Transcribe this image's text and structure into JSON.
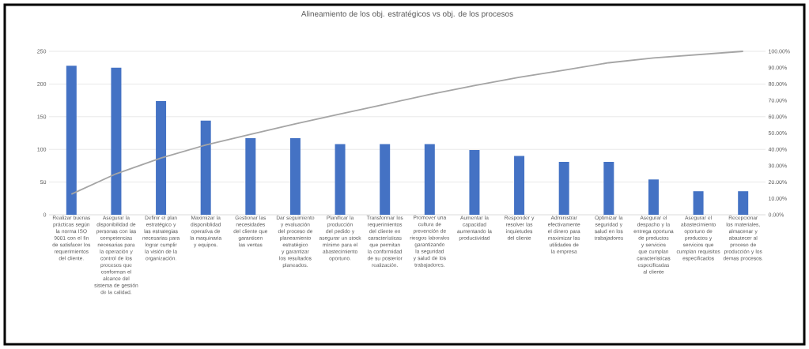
{
  "chart_data": {
    "type": "bar",
    "title": "Alineamiento de los obj. estratégicos vs obj. de los procesos",
    "categories": [
      "Realizar buenas prácticas según la norma ISO 9001 con el fin de satisfacer los requerimientos del cliente.",
      "Asegurar la disponibilidad de personas con las competencias necesarias para la operación y control de los procesos que conforman el alcance del sistema de gestión de la calidad.",
      "Definir el plan estratégico y las estrategias necesarias para lograr cumplir la visión de la organización.",
      "Maximizar la disponiblidad operativa de la maquinaria y equipos.",
      "Gestionar las necesidades del cliente que garanticen las ventas",
      "Dar seguimiento y evaluación del proceso de planeamiento estratégico y garantizar los resultados planeados.",
      "Planificar la producción del pedido y asegurar un stock mínimo para el abastecimiento oportuno.",
      "Transformar los requerimientos del cliente en características que permitan la conformidad de su posterior realización.",
      "Promover una cultura de prevención de riesgos laborales garantizando la seguridad y salud de los trabajadores.",
      "Aumentar la capacidad aumentando la productividad",
      "Responder y resolver las inquietudes del cliente",
      "Administrar efectivamente el dinero para maximizar las utilidades de la empresa",
      "Optimizar la seguridad y salud en los trabajadores",
      "Asegurar el despacho y la entrega oportuna de productos y servicios que cumplan características especificadas al cliente",
      "Asegurar el abastecimiento oportuno de productos y servicios que cumplan requisitos especificados",
      "Recepcionar los materiales, almacenar y abastecer al proceso de producción y los demas procesos."
    ],
    "series": [
      {
        "color": "#4472c4",
        "values": [
          228,
          225,
          174,
          144,
          117,
          117,
          108,
          108,
          108,
          99,
          90,
          81,
          81,
          54,
          36,
          36
        ]
      },
      {
        "type": "line",
        "axis": "y2",
        "color": "#a5a5a5",
        "values": [
          12.6,
          25.1,
          34.7,
          42.7,
          49.2,
          55.6,
          61.6,
          67.6,
          73.6,
          79.1,
          84.1,
          88.5,
          93.0,
          96.0,
          98.0,
          100
        ]
      }
    ],
    "ylim": [
      0,
      250
    ],
    "yticks": [
      0,
      50,
      100,
      150,
      200,
      250
    ],
    "y2lim": [
      0,
      100
    ],
    "y2ticks": [
      {
        "value": 0,
        "label": "0.00%"
      },
      {
        "value": 10,
        "label": "10.00%"
      },
      {
        "value": 20,
        "label": "20.00%"
      },
      {
        "value": 30,
        "label": "30.00%"
      },
      {
        "value": 40,
        "label": "40.00%"
      },
      {
        "value": 50,
        "label": "50.00%"
      },
      {
        "value": 60,
        "label": "60.00%"
      },
      {
        "value": 70,
        "label": "70.00%"
      },
      {
        "value": 80,
        "label": "80.00%"
      },
      {
        "value": 90,
        "label": "90.00%"
      },
      {
        "value": 100,
        "label": "100.00%"
      }
    ],
    "grid": "y"
  }
}
